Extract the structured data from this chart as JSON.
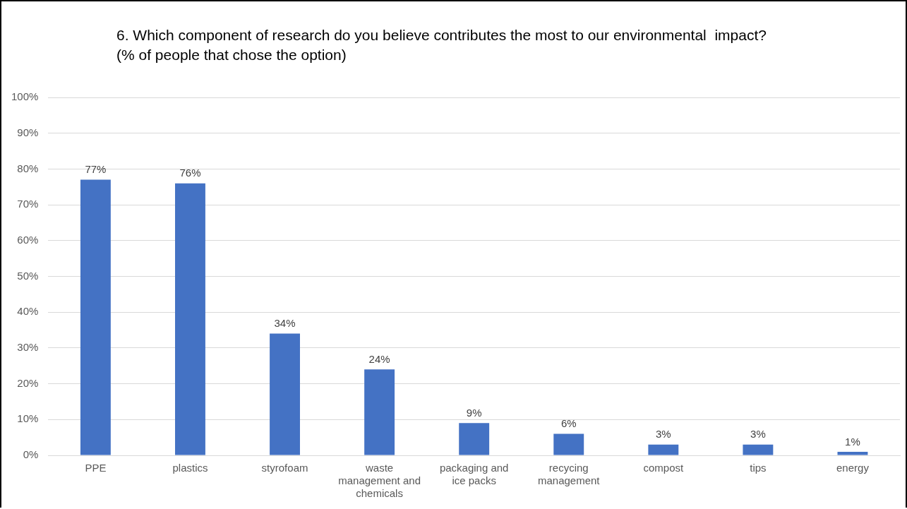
{
  "chart_data": {
    "type": "bar",
    "title": "6. Which component of research do you believe contributes the most to our environmental  impact?",
    "subtitle": "(% of people that chose the option)",
    "categories": [
      "PPE",
      "plastics",
      "styrofoam",
      "waste management and chemicals",
      "packaging and ice packs",
      "recycing management",
      "compost",
      "tips",
      "energy"
    ],
    "values": [
      77,
      76,
      34,
      24,
      9,
      6,
      3,
      3,
      1
    ],
    "value_labels": [
      "77%",
      "76%",
      "34%",
      "24%",
      "9%",
      "6%",
      "3%",
      "3%",
      "1%"
    ],
    "color": "#4472c4",
    "ylim": [
      0,
      100
    ],
    "yticks": [
      {
        "value": 0,
        "label": "0%"
      },
      {
        "value": 10,
        "label": "10%"
      },
      {
        "value": 20,
        "label": "20%"
      },
      {
        "value": 30,
        "label": "30%"
      },
      {
        "value": 40,
        "label": "40%"
      },
      {
        "value": 50,
        "label": "50%"
      },
      {
        "value": 60,
        "label": "60%"
      },
      {
        "value": 70,
        "label": "70%"
      },
      {
        "value": 80,
        "label": "80%"
      },
      {
        "value": 90,
        "label": "90%"
      },
      {
        "value": 100,
        "label": "100%"
      }
    ],
    "grid": "y",
    "legend": false
  }
}
